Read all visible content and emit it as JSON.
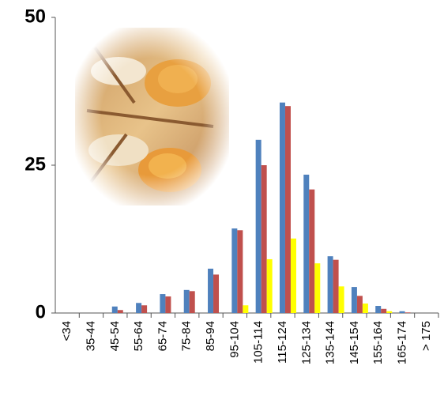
{
  "chart_data": {
    "type": "bar",
    "categories": [
      "<34",
      "35-44",
      "45-54",
      "55-64",
      "65-74",
      "75-84",
      "85-94",
      "95-104",
      "105-114",
      "115-124",
      "125-134",
      "135-144",
      "145-154",
      "155-164",
      "165-174",
      "> 175"
    ],
    "series": [
      {
        "color": "#4f81bd",
        "values": [
          0,
          0,
          1.1,
          1.7,
          3.2,
          3.9,
          7.5,
          14.3,
          29.3,
          35.6,
          23.4,
          9.6,
          4.4,
          1.2,
          0.3,
          0
        ]
      },
      {
        "color": "#c0504d",
        "values": [
          0,
          0,
          0.5,
          1.3,
          2.8,
          3.7,
          6.5,
          14.0,
          25.0,
          35.0,
          20.9,
          9.0,
          2.9,
          0.7,
          0.1,
          0
        ]
      },
      {
        "color": "#ffff00",
        "values": [
          0,
          0,
          0,
          0,
          0,
          0,
          0,
          1.3,
          9.1,
          12.6,
          8.4,
          4.5,
          1.6,
          0.3,
          0,
          0
        ]
      }
    ],
    "ylim": [
      0,
      50
    ],
    "yticks": [
      0,
      25,
      50
    ],
    "grid": false
  }
}
